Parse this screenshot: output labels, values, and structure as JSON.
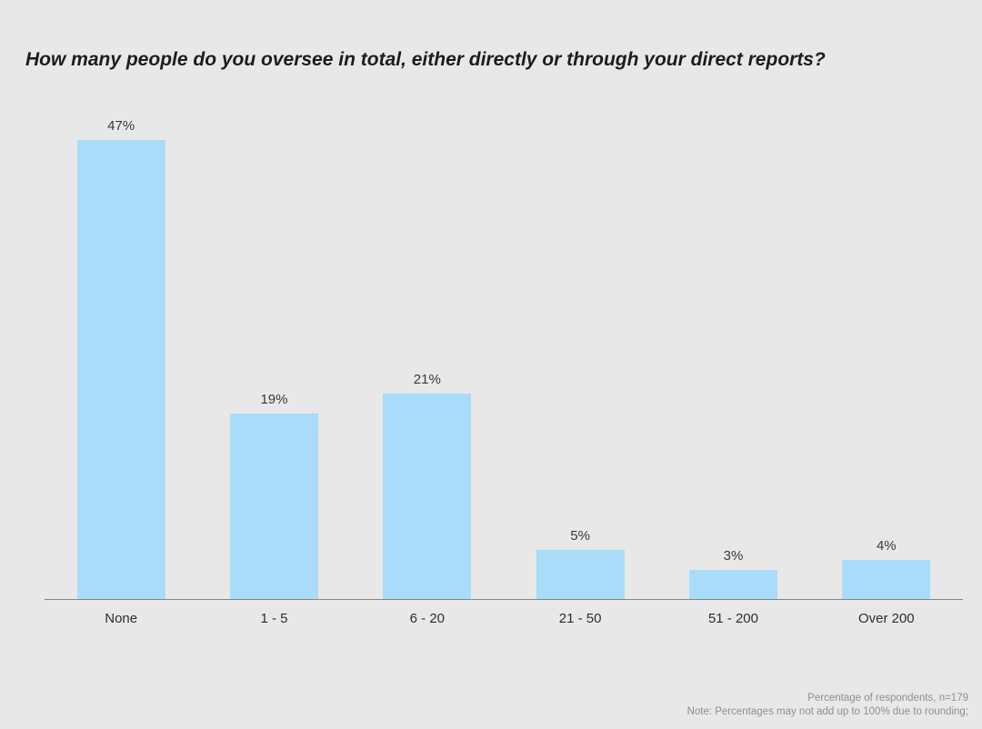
{
  "chart_data": {
    "type": "bar",
    "title": "How many people do you oversee in total, either directly or through your direct reports?",
    "categories": [
      "None",
      "1 - 5",
      "6 - 20",
      "21 - 50",
      "51 - 200",
      "Over 200"
    ],
    "values": [
      47,
      19,
      21,
      5,
      3,
      4
    ],
    "value_labels": [
      "47%",
      "19%",
      "21%",
      "5%",
      "3%",
      "4%"
    ],
    "xlabel": "",
    "ylabel": "",
    "ylim": [
      0,
      50
    ],
    "grid": false,
    "legend": false,
    "bar_color": "#a9dcf8",
    "background_color": "#e8e8e8",
    "axis_color": "#858585"
  },
  "footnote": {
    "line1": "Percentage of respondents, n=179",
    "line2": "Note: Percentages may not add up to 100% due to rounding;"
  }
}
